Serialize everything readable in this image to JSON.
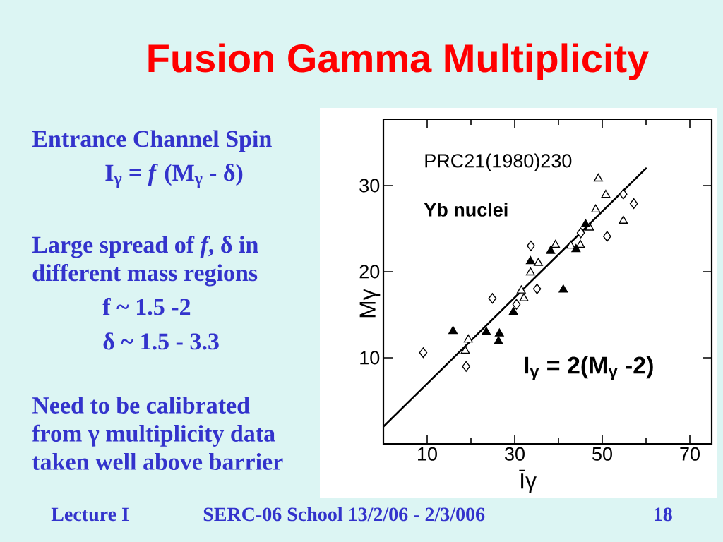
{
  "chart_data": {
    "type": "scatter",
    "title": "Fusion Gamma Multiplicity",
    "xlabel": "Īγ",
    "ylabel": "Mγ",
    "xlim": [
      0,
      75
    ],
    "ylim": [
      0,
      37.7
    ],
    "xticks": [
      10,
      {
        "value": 20,
        "label": null
      },
      30,
      {
        "value": 40,
        "label": null
      },
      50,
      {
        "value": 60,
        "label": null
      },
      70
    ],
    "yticks": [
      10,
      20,
      30
    ],
    "series": [
      {
        "marker": "diamond",
        "color": "#ffffff",
        "x": [
          9.1,
          18.9,
          24.9,
          30.4,
          33.7,
          35.1,
          45.1,
          51.1,
          54.8,
          57.2
        ],
        "values": [
          10.6,
          9.0,
          16.9,
          16.2,
          23.0,
          18.0,
          24.5,
          24.1,
          29.0,
          27.9
        ]
      },
      {
        "marker": "triangle",
        "color": "#ffffff",
        "x": [
          18.7,
          19.4,
          31.5,
          32.1,
          33.6,
          35.4,
          39.3,
          42.8,
          45.0,
          47.1,
          48.5,
          49.1,
          50.8,
          54.8
        ],
        "values": [
          10.8,
          12.1,
          17.8,
          16.9,
          19.9,
          21.0,
          23.1,
          23.0,
          23.1,
          25.1,
          27.2,
          30.8,
          28.9,
          25.9
        ]
      },
      {
        "marker": "triangle",
        "color": "#000000",
        "x": [
          15.9,
          23.5,
          26.5,
          26.3,
          29.7,
          33.6,
          38.2,
          41.1,
          44.0,
          46.2
        ],
        "values": [
          13.1,
          13.0,
          12.8,
          11.9,
          15.3,
          21.2,
          22.4,
          17.9,
          22.6,
          25.5
        ]
      },
      {
        "type": "line",
        "marker": "none",
        "line_style": "solid",
        "color": "#000000",
        "x": [
          0,
          60
        ],
        "values": [
          2,
          32
        ]
      }
    ],
    "annotations": [
      "PRC21(1980)230",
      "Yb nuclei",
      "I$_{γ}$ = 2(M$_{γ}$ -2)",
      "Entrance Channel Spin",
      "I$_{γ}$ = *f* (M$_{γ}$ - δ)",
      "Large spread of *f*, δ in different mass regions",
      "f ~ 1.5 -2",
      "δ ~ 1.5 - 3.3",
      "Need to be calibrated from γ multiplicity data taken well above barrier",
      "Lecture I",
      "SERC-06 School  13/2/06 - 2/3/006",
      "18"
    ]
  }
}
